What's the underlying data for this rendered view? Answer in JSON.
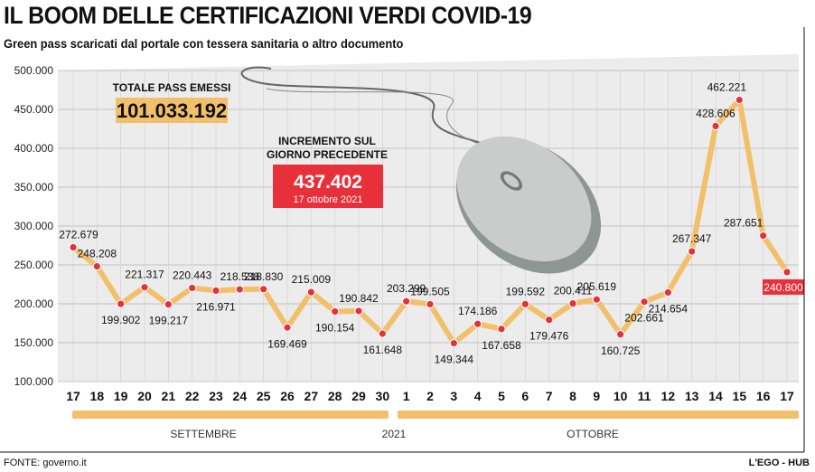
{
  "header": {
    "title": "IL BOOM DELLE CERTIFICAZIONI VERDI COVID-19",
    "subtitle": "Green pass scaricati dal portale con tessera sanitaria o altro documento"
  },
  "callouts": {
    "total_label": "TOTALE PASS EMESSI",
    "total_value": "101.033.192",
    "increment_label_line1": "INCREMENTO SUL",
    "increment_label_line2": "GIORNO PRECEDENTE",
    "increment_value": "437.402",
    "increment_date": "17 ottobre 2021"
  },
  "months": {
    "september": "SETTEMBRE",
    "year": "2021",
    "october": "OTTOBRE"
  },
  "footer": {
    "source": "FONTE: governo.it",
    "credit": "L'EGO - HUB"
  },
  "colors": {
    "line": "#f2c06a",
    "point": "#e8303a",
    "highlight_box": "#e8303a",
    "total_box": "#f2c06a",
    "band": "#f2c06a"
  },
  "chart_data": {
    "type": "line",
    "title": "IL BOOM DELLE CERTIFICAZIONI VERDI COVID-19",
    "subtitle": "Green pass scaricati dal portale con tessera sanitaria o altro documento",
    "categories": [
      "17",
      "18",
      "19",
      "20",
      "21",
      "22",
      "23",
      "24",
      "25",
      "26",
      "27",
      "28",
      "29",
      "30",
      "1",
      "2",
      "3",
      "4",
      "5",
      "6",
      "7",
      "8",
      "9",
      "10",
      "11",
      "12",
      "13",
      "14",
      "15",
      "16",
      "17"
    ],
    "series": [
      {
        "values": [
          272679,
          248208,
          199902,
          221317,
          199217,
          220443,
          216971,
          218538,
          218830,
          169469,
          215009,
          190154,
          190842,
          161648,
          203299,
          199505,
          149344,
          174186,
          167658,
          199592,
          179476,
          200411,
          205619,
          160725,
          202661,
          214654,
          267347,
          428606,
          462221,
          287651,
          240800
        ]
      }
    ],
    "value_labels": [
      "272.679",
      "248.208",
      "199.902",
      "221.317",
      "199.217",
      "220.443",
      "216.971",
      "218.538",
      "218.830",
      "169.469",
      "215.009",
      "190.154",
      "190.842",
      "161.648",
      "203.299",
      "199.505",
      "149.344",
      "174.186",
      "167.658",
      "199.592",
      "179.476",
      "200.411",
      "205.619",
      "160.725",
      "202.661",
      "214.654",
      "267.347",
      "428.606",
      "462.221",
      "287.651",
      "240.800"
    ],
    "y_ticks": [
      "500.000",
      "450.000",
      "400.000",
      "350.000",
      "300.000",
      "250.000",
      "200.000",
      "150.000",
      "100.000"
    ],
    "ylim": [
      100000,
      500000
    ],
    "grid": true,
    "highlight_last": true
  }
}
